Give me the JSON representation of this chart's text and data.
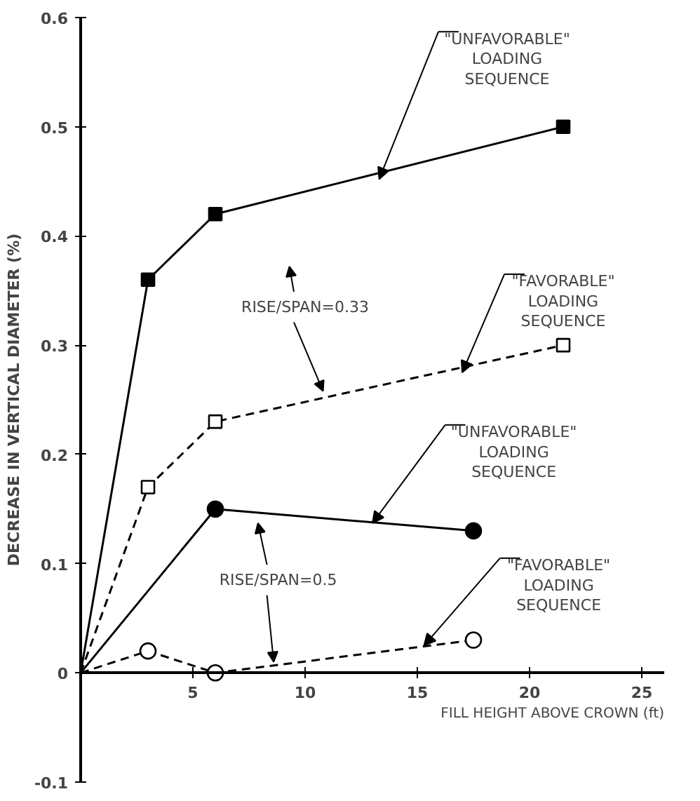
{
  "chart_data": {
    "type": "line",
    "xlabel": "FILL HEIGHT ABOVE CROWN (ft)",
    "ylabel": "DECREASE IN VERTICAL DIAMETER (%)",
    "xlim": [
      0,
      26
    ],
    "ylim": [
      -0.1,
      0.6
    ],
    "xticks": [
      5,
      10,
      15,
      20,
      25
    ],
    "yticks": [
      -0.1,
      0,
      0.1,
      0.2,
      0.3,
      0.4,
      0.5,
      0.6
    ],
    "grid": false,
    "series": [
      {
        "color": "#000000",
        "marker": "square",
        "line_style": "solid",
        "x": [
          0,
          3,
          6,
          21.5
        ],
        "values": [
          0,
          0.36,
          0.42,
          0.5
        ]
      },
      {
        "color": "#000000",
        "marker": "square",
        "line_style": "dashed",
        "x": [
          0,
          3,
          6,
          21.5
        ],
        "values": [
          0,
          0.17,
          0.23,
          0.3
        ]
      },
      {
        "color": "#000000",
        "marker": "circle",
        "line_style": "solid",
        "x": [
          0,
          6,
          17.5
        ],
        "values": [
          0,
          0.15,
          0.13
        ]
      },
      {
        "color": "#000000",
        "marker": "circle",
        "line_style": "dashed",
        "x": [
          0,
          3,
          6,
          17.5
        ],
        "values": [
          0,
          0.02,
          0,
          0.03
        ]
      }
    ],
    "annotations": [
      {
        "text": "\"UNFAVORABLE\"\nLOADING\nSEQUENCE",
        "x": 13.3,
        "y": 0.452
      },
      {
        "text": "\"FAVORABLE\"\nLOADING\nSEQUENCE",
        "x": 17,
        "y": 0.275
      },
      {
        "text": "\"UNFAVORABLE\"\nLOADING\nSEQUENCE",
        "x": 13,
        "y": 0.137
      },
      {
        "text": "\"FAVORABLE\"\nLOADING\nSEQUENCE",
        "x": 15.3,
        "y": 0.025
      },
      {
        "text": "RISE/SPAN=0.33",
        "x": 10.8,
        "y": 0.258
      },
      {
        "text": "RISE/SPAN=0.5",
        "x": 8.6,
        "y": 0.01
      }
    ]
  }
}
